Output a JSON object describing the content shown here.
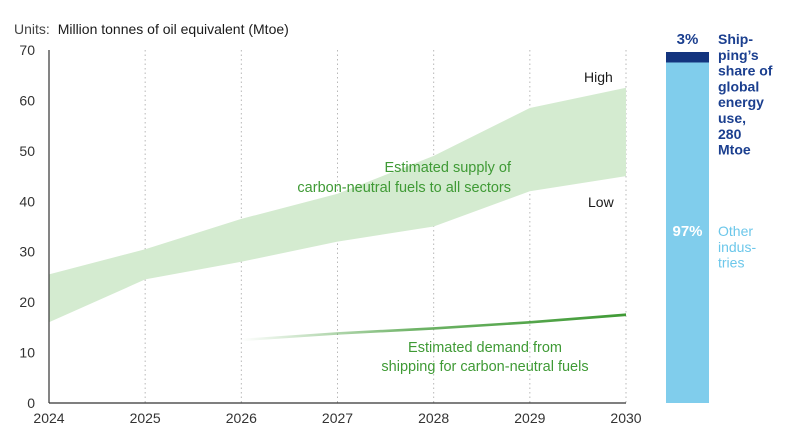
{
  "units_label": "Units:",
  "units_value": "Million tonnes of oil equivalent (Mtoe)",
  "colors": {
    "band": "#d4ebd0",
    "demand": "#3f9a35",
    "green_text": "#3f9a35",
    "shipping": "#13347e",
    "other": "#80cdec",
    "other_text": "#6cc7ea",
    "grid": "#b8b8b8"
  },
  "chart_data": [
    {
      "type": "area",
      "x": [
        2024,
        2025,
        2026,
        2027,
        2028,
        2029,
        2030
      ],
      "ylim": [
        0,
        70
      ],
      "xlim": [
        2024,
        2030
      ],
      "y_ticks": [
        0,
        10,
        20,
        30,
        40,
        50,
        60,
        70
      ],
      "grid": "vertical dotted",
      "series": [
        {
          "name": "High",
          "values": [
            25.5,
            30.5,
            36.5,
            41.5,
            49,
            58.5,
            62.5
          ]
        },
        {
          "name": "Low",
          "values": [
            16,
            24.5,
            28,
            32,
            35,
            42,
            45
          ]
        },
        {
          "values": [
            null,
            null,
            12.5,
            13.8,
            14.8,
            16,
            17.5
          ]
        }
      ],
      "annotations": {
        "high_label": "High",
        "low_label": "Low",
        "supply_line1": "Estimated supply of",
        "supply_line2": "carbon-neutral fuels to all sectors",
        "demand_line1": "Estimated demand from",
        "demand_line2": "shipping for carbon-neutral fuels"
      }
    },
    {
      "type": "bar",
      "stacked": true,
      "categories": [
        "Shipping",
        "Other industries"
      ],
      "values": [
        3,
        97
      ],
      "value_labels": [
        "3%",
        "97%"
      ],
      "shipping_label_lines": [
        "Ship-",
        "ping’s",
        "share of",
        "global",
        "energy",
        "use,"
      ],
      "shipping_total": "280",
      "shipping_unit": "Mtoe",
      "other_label_lines": [
        "Other",
        "indus-",
        "tries"
      ]
    }
  ]
}
